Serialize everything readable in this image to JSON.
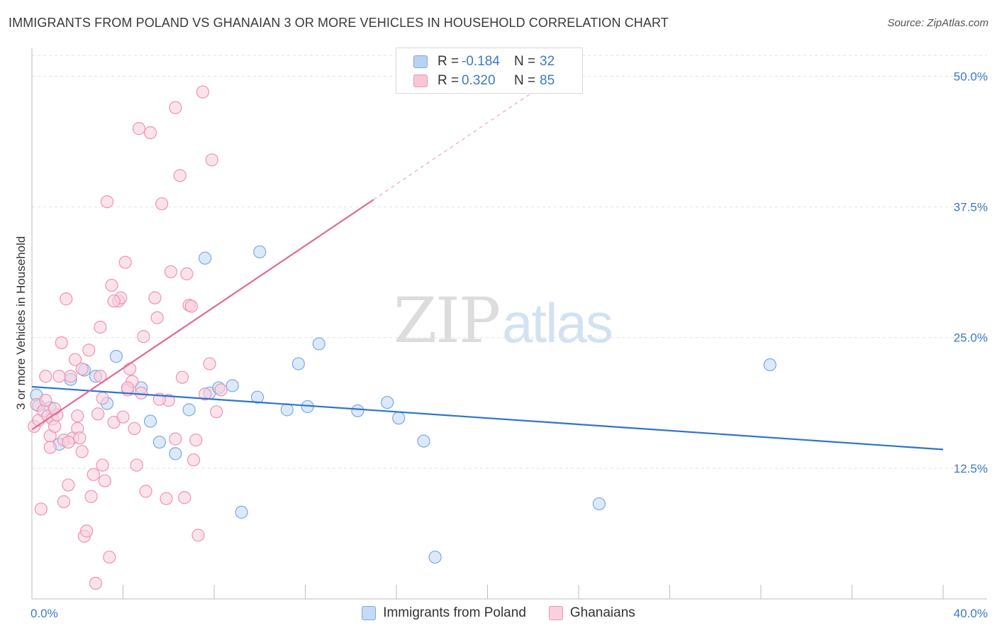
{
  "header": {
    "title": "IMMIGRANTS FROM POLAND VS GHANAIAN 3 OR MORE VEHICLES IN HOUSEHOLD CORRELATION CHART",
    "source": "Source: ZipAtlas.com"
  },
  "watermark": {
    "zip": "ZIP",
    "atlas": "atlas"
  },
  "legend": {
    "rows": [
      {
        "r_label": "R =",
        "r_value": "-0.184",
        "n_label": "N =",
        "n_value": "32",
        "color": "#b8d3f2",
        "border": "#7aaae0"
      },
      {
        "r_label": "R =",
        "r_value": "0.320",
        "n_label": "N =",
        "n_value": "85",
        "color": "#f9c6d6",
        "border": "#ee93b3"
      }
    ]
  },
  "bottom_legend": {
    "items": [
      {
        "label": "Immigrants from Poland",
        "color": "#c5dbf4",
        "border": "#7aaae0"
      },
      {
        "label": "Ghanaians",
        "color": "#f9d0dd",
        "border": "#ee93b3"
      }
    ]
  },
  "chart_data": {
    "type": "scatter",
    "title": "IMMIGRANTS FROM POLAND VS GHANAIAN 3 OR MORE VEHICLES IN HOUSEHOLD CORRELATION CHART",
    "xlabel": "",
    "ylabel": "3 or more Vehicles in Household",
    "xlim": [
      0,
      40
    ],
    "ylim": [
      0,
      52
    ],
    "x_tick_labels": [
      "0.0%",
      "40.0%"
    ],
    "y_ticks": [
      12.5,
      25.0,
      37.5,
      50.0
    ],
    "y_tick_labels": [
      "12.5%",
      "25.0%",
      "37.5%",
      "50.0%"
    ],
    "grid": true,
    "legend_position": "top-center",
    "series": [
      {
        "name": "Immigrants from Poland",
        "color": "#7aaae0",
        "fill": "#c5dbf4",
        "line_color": "#2f74cf",
        "trend": {
          "x": [
            0,
            40
          ],
          "y": [
            20.3,
            14.3
          ]
        },
        "points": [
          [
            0.2,
            19.5
          ],
          [
            0.3,
            18.5
          ],
          [
            0.8,
            18.3
          ],
          [
            1.2,
            14.8
          ],
          [
            1.7,
            21.0
          ],
          [
            2.3,
            21.9
          ],
          [
            2.8,
            21.3
          ],
          [
            3.3,
            18.7
          ],
          [
            3.7,
            23.2
          ],
          [
            4.8,
            20.2
          ],
          [
            5.2,
            17.0
          ],
          [
            5.6,
            15.0
          ],
          [
            6.3,
            13.9
          ],
          [
            6.9,
            18.1
          ],
          [
            7.6,
            32.6
          ],
          [
            7.8,
            19.7
          ],
          [
            8.2,
            20.2
          ],
          [
            8.8,
            20.4
          ],
          [
            9.2,
            8.3
          ],
          [
            9.9,
            19.3
          ],
          [
            10.0,
            33.2
          ],
          [
            11.2,
            18.1
          ],
          [
            11.7,
            22.5
          ],
          [
            12.1,
            18.4
          ],
          [
            12.6,
            24.4
          ],
          [
            14.3,
            18.0
          ],
          [
            15.6,
            18.8
          ],
          [
            16.1,
            17.3
          ],
          [
            17.2,
            15.1
          ],
          [
            17.7,
            4.0
          ],
          [
            24.9,
            9.1
          ],
          [
            32.4,
            22.4
          ]
        ]
      },
      {
        "name": "Ghanaians",
        "color": "#ee93b3",
        "fill": "#f9d0dd",
        "line_color": "#e0689a",
        "trend": {
          "x": [
            0,
            15
          ],
          "y": [
            16.2,
            38.2
          ]
        },
        "trend_dashed": {
          "x": [
            15,
            22
          ],
          "y": [
            38.2,
            48.5
          ]
        },
        "points": [
          [
            0.1,
            16.5
          ],
          [
            0.2,
            18.6
          ],
          [
            0.3,
            17.1
          ],
          [
            0.4,
            8.6
          ],
          [
            0.5,
            18.0
          ],
          [
            0.6,
            19.0
          ],
          [
            0.7,
            17.5
          ],
          [
            0.8,
            15.6
          ],
          [
            0.8,
            14.5
          ],
          [
            0.9,
            17.2
          ],
          [
            1.0,
            16.5
          ],
          [
            1.1,
            17.6
          ],
          [
            1.2,
            21.3
          ],
          [
            1.3,
            24.5
          ],
          [
            1.4,
            15.2
          ],
          [
            1.4,
            9.3
          ],
          [
            1.5,
            28.7
          ],
          [
            1.6,
            10.9
          ],
          [
            1.7,
            21.3
          ],
          [
            1.8,
            15.4
          ],
          [
            1.9,
            22.9
          ],
          [
            2.0,
            17.5
          ],
          [
            2.0,
            16.3
          ],
          [
            2.1,
            15.4
          ],
          [
            2.2,
            14.1
          ],
          [
            2.3,
            6.0
          ],
          [
            2.4,
            6.5
          ],
          [
            2.5,
            23.8
          ],
          [
            2.6,
            9.8
          ],
          [
            2.7,
            11.9
          ],
          [
            2.8,
            1.5
          ],
          [
            2.9,
            17.7
          ],
          [
            3.0,
            26.0
          ],
          [
            3.0,
            21.3
          ],
          [
            3.1,
            12.8
          ],
          [
            3.2,
            11.3
          ],
          [
            3.3,
            38.0
          ],
          [
            3.4,
            4.0
          ],
          [
            3.5,
            30.0
          ],
          [
            3.6,
            16.9
          ],
          [
            3.8,
            28.5
          ],
          [
            3.9,
            28.8
          ],
          [
            4.0,
            17.4
          ],
          [
            4.1,
            32.2
          ],
          [
            4.2,
            20.0
          ],
          [
            4.3,
            22.0
          ],
          [
            4.4,
            20.8
          ],
          [
            4.5,
            16.3
          ],
          [
            4.6,
            12.8
          ],
          [
            4.7,
            45.0
          ],
          [
            4.8,
            19.7
          ],
          [
            4.9,
            25.1
          ],
          [
            5.0,
            10.3
          ],
          [
            5.2,
            44.6
          ],
          [
            5.4,
            28.8
          ],
          [
            5.5,
            26.9
          ],
          [
            5.7,
            37.8
          ],
          [
            5.9,
            9.6
          ],
          [
            6.0,
            19.0
          ],
          [
            6.1,
            31.3
          ],
          [
            6.3,
            15.3
          ],
          [
            6.3,
            47.0
          ],
          [
            6.5,
            40.5
          ],
          [
            6.6,
            21.2
          ],
          [
            6.7,
            9.7
          ],
          [
            6.8,
            31.1
          ],
          [
            6.9,
            28.1
          ],
          [
            7.0,
            28.0
          ],
          [
            7.1,
            13.3
          ],
          [
            7.2,
            15.2
          ],
          [
            7.3,
            6.1
          ],
          [
            7.5,
            48.5
          ],
          [
            7.6,
            19.6
          ],
          [
            7.8,
            22.5
          ],
          [
            7.9,
            42.0
          ],
          [
            8.1,
            17.9
          ],
          [
            8.3,
            20.0
          ],
          [
            3.1,
            19.2
          ],
          [
            2.2,
            22.0
          ],
          [
            1.0,
            18.2
          ],
          [
            1.6,
            15.0
          ],
          [
            3.6,
            28.5
          ],
          [
            5.6,
            19.1
          ],
          [
            0.6,
            21.3
          ],
          [
            4.2,
            20.2
          ]
        ]
      }
    ]
  }
}
